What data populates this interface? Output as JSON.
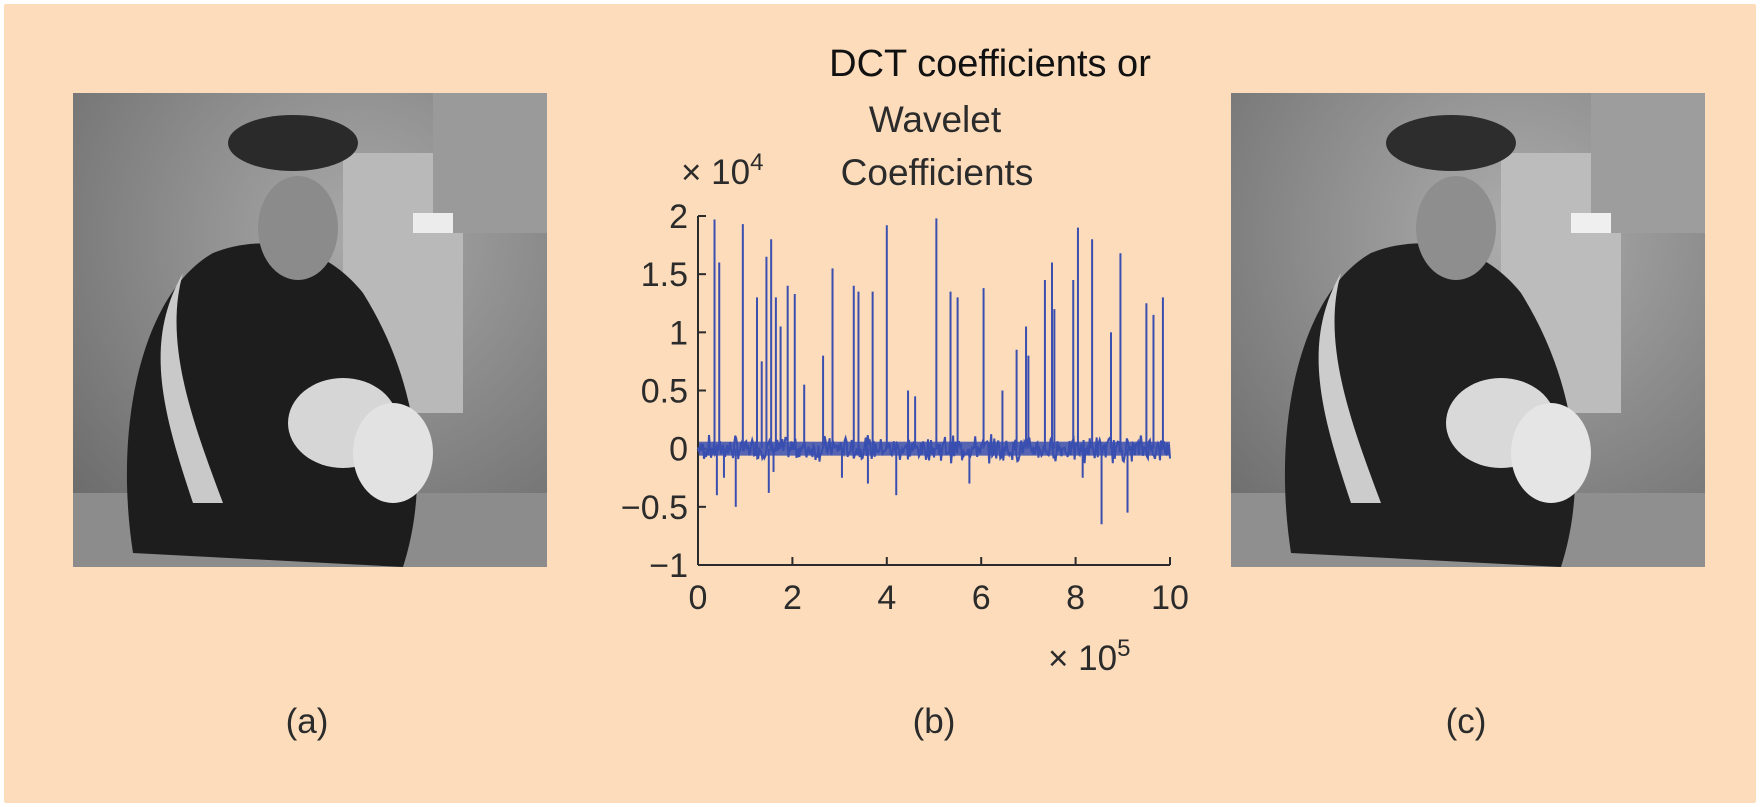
{
  "panels": {
    "left": {
      "label": "(a)"
    },
    "middle": {
      "label": "(b)"
    },
    "right": {
      "label": "(c)"
    }
  },
  "colors": {
    "background": "#fcdcbb",
    "series": "#3a4fb0",
    "text": "#2b2b2b"
  },
  "chart_data": {
    "type": "line",
    "title_lines": [
      "DCT coefficients or",
      "Wavelet",
      "Coefficients"
    ],
    "x_multiplier": "× 10",
    "x_multiplier_exp": "5",
    "y_multiplier": "× 10",
    "y_multiplier_exp": "4",
    "xlim": [
      0,
      10
    ],
    "ylim": [
      -1,
      2
    ],
    "xticks": [
      "0",
      "2",
      "4",
      "6",
      "8",
      "10"
    ],
    "yticks": [
      "2",
      "1.5",
      "1",
      "0.5",
      "0",
      "−0.5",
      "−1"
    ],
    "xtick_values": [
      0,
      2,
      4,
      6,
      8,
      10
    ],
    "ytick_values": [
      2,
      1.5,
      1,
      0.5,
      0,
      -0.5,
      -1
    ],
    "grid": false,
    "series": [
      {
        "x": [
          0.35,
          0.4,
          0.45,
          0.55,
          0.8,
          0.95,
          1.25,
          1.35,
          1.45,
          1.5,
          1.55,
          1.6,
          1.65,
          1.75,
          1.9,
          2.05,
          2.25,
          2.65,
          2.85,
          3.05,
          3.3,
          3.4,
          3.6,
          3.7,
          4.0,
          4.2,
          4.45,
          4.6,
          5.05,
          5.35,
          5.5,
          5.75,
          6.05,
          6.45,
          6.75,
          6.95,
          7.0,
          7.35,
          7.5,
          7.55,
          7.95,
          8.05,
          8.15,
          8.35,
          8.55,
          8.75,
          8.95,
          9.1,
          9.5,
          9.65,
          9.85
        ],
        "y": [
          1.97,
          -0.4,
          1.6,
          -0.25,
          -0.5,
          1.93,
          1.3,
          0.75,
          1.65,
          -0.38,
          1.8,
          -0.2,
          1.3,
          1.05,
          1.4,
          1.33,
          0.55,
          0.8,
          1.55,
          -0.25,
          1.4,
          1.35,
          -0.3,
          1.35,
          1.92,
          -0.4,
          0.5,
          0.45,
          1.98,
          1.35,
          1.3,
          -0.3,
          1.38,
          0.5,
          0.85,
          1.05,
          0.8,
          1.45,
          1.6,
          1.2,
          1.45,
          1.9,
          -0.25,
          1.8,
          -0.65,
          1.0,
          1.68,
          -0.55,
          1.25,
          1.15,
          1.3
        ]
      }
    ]
  }
}
